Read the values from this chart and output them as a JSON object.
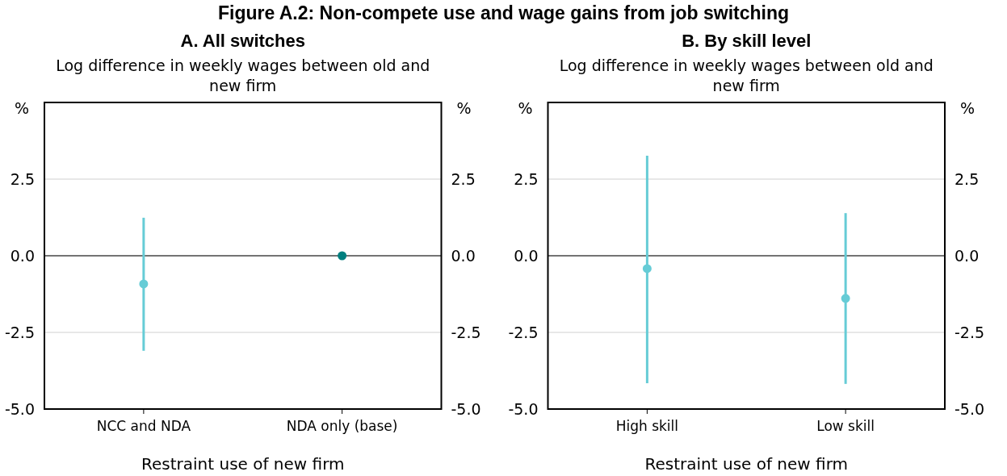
{
  "chart_data": [
    {
      "type": "scatter",
      "title": "A. All switches",
      "subtitle": "Log difference in weekly wages between old and new firm",
      "xlabel": "Restraint use of new firm",
      "ylabel": "%",
      "y2label": "%",
      "annotations": [
        "Figure A.2: Non-compete use and wage gains from job switching"
      ],
      "categories": [
        "NCC and NDA",
        "NDA only (base)"
      ],
      "values": [
        -0.92,
        0
      ],
      "colors": [
        "#66ccd6",
        "#007f7f"
      ],
      "errors": [
        [
          -3.1,
          1.24
        ],
        null
      ],
      "ylim": [
        -5,
        5
      ],
      "yticks": [
        {
          "value": -5,
          "label": "-5.0"
        },
        {
          "value": -2.5,
          "label": "-2.5"
        },
        {
          "value": 0,
          "label": "0.0"
        },
        {
          "value": 2.5,
          "label": "2.5"
        }
      ],
      "y2lim": [
        -5,
        5
      ],
      "y2ticks": [
        {
          "value": -5,
          "label": "-5.0"
        },
        {
          "value": -2.5,
          "label": "-2.5"
        },
        {
          "value": 0,
          "label": "0.0"
        },
        {
          "value": 2.5,
          "label": "2.5"
        }
      ],
      "ref_lines": [
        {
          "axis": "y",
          "value": 0,
          "color": "#000000"
        }
      ],
      "grid": "y",
      "marker": "circle"
    },
    {
      "type": "scatter",
      "title": "B. By skill level",
      "subtitle": "Log difference in weekly wages between old and new firm",
      "xlabel": "Restraint use of new firm",
      "ylabel": "%",
      "y2label": "%",
      "categories": [
        "High skill",
        "Low skill"
      ],
      "values": [
        -0.42,
        -1.39
      ],
      "colors": [
        "#66ccd6",
        "#66ccd6"
      ],
      "errors": [
        [
          -4.16,
          3.26
        ],
        [
          -4.18,
          1.39
        ]
      ],
      "ylim": [
        -5,
        5
      ],
      "yticks": [
        {
          "value": -5,
          "label": "-5.0"
        },
        {
          "value": -2.5,
          "label": "-2.5"
        },
        {
          "value": 0,
          "label": "0.0"
        },
        {
          "value": 2.5,
          "label": "2.5"
        }
      ],
      "y2lim": [
        -5,
        5
      ],
      "y2ticks": [
        {
          "value": -5,
          "label": "-5.0"
        },
        {
          "value": -2.5,
          "label": "-2.5"
        },
        {
          "value": 0,
          "label": "0.0"
        },
        {
          "value": 2.5,
          "label": "2.5"
        }
      ],
      "ref_lines": [
        {
          "axis": "y",
          "value": 0,
          "color": "#000000"
        }
      ],
      "grid": "y",
      "marker": "circle"
    }
  ]
}
